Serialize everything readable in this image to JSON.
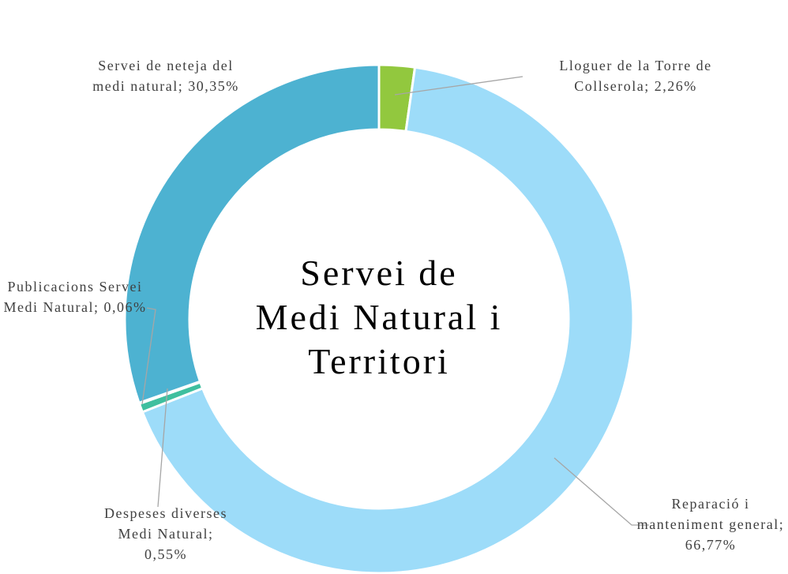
{
  "chart_data": {
    "type": "donut",
    "title": "Servei de Medi Natural i Territori",
    "categories": [
      "Lloguer de la Torre de Collserola",
      "Reparació i manteniment general",
      "Despeses diverses Medi Natural",
      "Publicacions Servei Medi Natural",
      "Servei de neteja del medi natural"
    ],
    "values": [
      2.26,
      66.77,
      0.55,
      0.06,
      30.35
    ],
    "value_labels": [
      "2,26%",
      "66,77%",
      "0,55%",
      "0,06%",
      "30,35%"
    ],
    "colors": [
      "#92c83e",
      "#9ddcf9",
      "#3fbf9f",
      "#5fc7b5",
      "#4db2d1"
    ]
  }
}
